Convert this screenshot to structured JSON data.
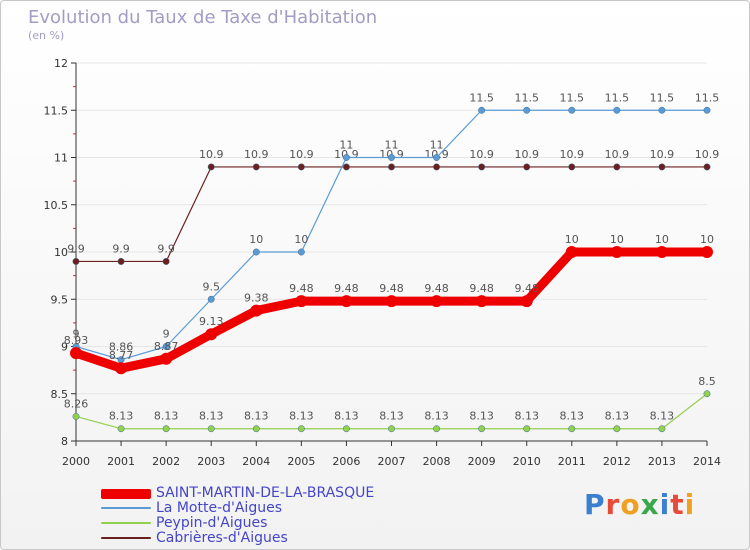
{
  "title": "Evolution du Taux de Taxe d'Habitation",
  "subtitle": "(en %)",
  "logo_text": "Proxiti",
  "colors": {
    "saint_martin": "#ee0000",
    "la_motte": "#5b9bd5",
    "peypin": "#92d050",
    "cabrieres": "#6b2020",
    "axis": "#333333",
    "grid": "#e6e6e6",
    "value_label": "#555555",
    "legend_text": "#4545c8"
  },
  "chart_data": {
    "type": "line",
    "title": "Evolution du Taux de Taxe d'Habitation",
    "subtitle": "(en %)",
    "x": [
      "2000",
      "2001",
      "2002",
      "2003",
      "2004",
      "2005",
      "2006",
      "2007",
      "2008",
      "2009",
      "2010",
      "2011",
      "2012",
      "2013",
      "2014"
    ],
    "y_ticks": [
      "8",
      "8.5",
      "9",
      "9.5",
      "10",
      "10.5",
      "11",
      "11.5",
      "12"
    ],
    "ylim": [
      8,
      12
    ],
    "grid": true,
    "legend_position": "bottom-left",
    "series": [
      {
        "key": "saint_martin",
        "name": "SAINT-MARTIN-DE-LA-BRASQUE",
        "values": [
          8.93,
          8.77,
          8.87,
          9.13,
          9.38,
          9.48,
          9.48,
          9.48,
          9.48,
          9.48,
          9.48,
          10,
          10,
          10,
          10
        ],
        "labels": [
          "8.93",
          "8.77",
          "8.87",
          "9.13",
          "9.38",
          "9.48",
          "9.48",
          "9.48",
          "9.48",
          "9.48",
          "9.48",
          "10",
          "10",
          "10",
          "10"
        ]
      },
      {
        "key": "la_motte",
        "name": "La Motte-d'Aigues",
        "values": [
          9,
          8.86,
          9,
          9.5,
          10,
          10,
          11,
          11,
          11,
          11.5,
          11.5,
          11.5,
          11.5,
          11.5,
          11.5
        ],
        "labels": [
          "9",
          "8.86",
          "9",
          "9.5",
          "10",
          "10",
          "11",
          "11",
          "11",
          "11.5",
          "11.5",
          "11.5",
          "11.5",
          "11.5",
          "11.5"
        ]
      },
      {
        "key": "peypin",
        "name": "Peypin-d'Aigues",
        "values": [
          8.26,
          8.13,
          8.13,
          8.13,
          8.13,
          8.13,
          8.13,
          8.13,
          8.13,
          8.13,
          8.13,
          8.13,
          8.13,
          8.13,
          8.5
        ],
        "labels": [
          "8.26",
          "8.13",
          "8.13",
          "8.13",
          "8.13",
          "8.13",
          "8.13",
          "8.13",
          "8.13",
          "8.13",
          "8.13",
          "8.13",
          "8.13",
          "8.13",
          "8.5"
        ]
      },
      {
        "key": "cabrieres",
        "name": "Cabrières-d'Aigues",
        "values": [
          9.9,
          9.9,
          9.9,
          10.9,
          10.9,
          10.9,
          10.9,
          10.9,
          10.9,
          10.9,
          10.9,
          10.9,
          10.9,
          10.9,
          10.9
        ],
        "labels": [
          "9.9",
          "9.9",
          "9.9",
          "10.9",
          "10.9",
          "10.9",
          "10.9",
          "10.9",
          "10.9",
          "10.9",
          "10.9",
          "10.9",
          "10.9",
          "10.9",
          "10.9"
        ]
      }
    ]
  }
}
